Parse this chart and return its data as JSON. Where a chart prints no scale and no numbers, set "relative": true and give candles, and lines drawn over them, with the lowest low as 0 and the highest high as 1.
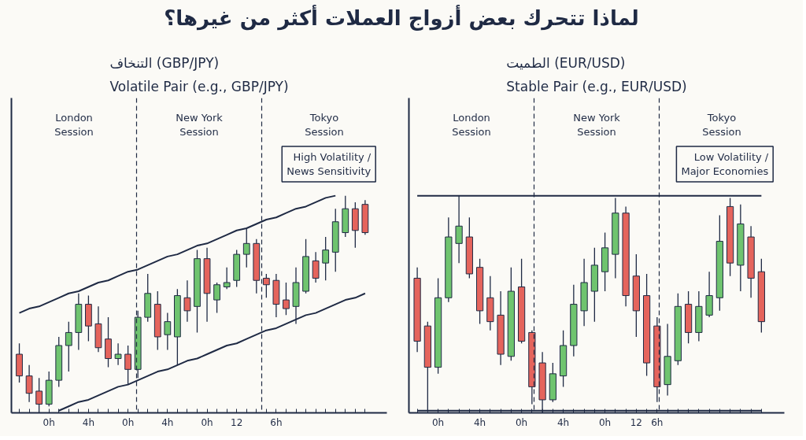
{
  "chart_data": [
    {
      "type": "candlestick",
      "title": "لماذا تتحرك بعض أزواج العملات أكثر من غيرها؟",
      "subtitle": "التنخاف (GBP/JPY)\nVolatile Pair (e.g., GBP/JPY)",
      "relative": true,
      "tick_labels": "x",
      "categories": [
        null,
        null,
        null,
        "0h",
        null,
        null,
        null,
        "4h",
        null,
        null,
        null,
        "0h",
        null,
        null,
        null,
        "4h",
        null,
        null,
        null,
        "0h",
        null,
        null,
        "12",
        null,
        null,
        null,
        "6h",
        null,
        null,
        null,
        null,
        null,
        null,
        null,
        null,
        null
      ],
      "ohlc": [
        [
          0.27,
          0.32,
          0.14,
          0.17
        ],
        [
          0.17,
          0.22,
          0.05,
          0.09
        ],
        [
          0.1,
          0.16,
          0.0,
          0.04
        ],
        [
          0.04,
          0.19,
          0.03,
          0.15
        ],
        [
          0.15,
          0.35,
          0.12,
          0.31
        ],
        [
          0.31,
          0.42,
          0.19,
          0.37
        ],
        [
          0.37,
          0.55,
          0.29,
          0.5
        ],
        [
          0.5,
          0.54,
          0.33,
          0.4
        ],
        [
          0.41,
          0.49,
          0.28,
          0.3
        ],
        [
          0.34,
          0.44,
          0.21,
          0.25
        ],
        [
          0.25,
          0.32,
          0.22,
          0.27
        ],
        [
          0.27,
          0.31,
          0.13,
          0.2
        ],
        [
          0.2,
          0.47,
          0.16,
          0.44
        ],
        [
          0.44,
          0.64,
          0.42,
          0.55
        ],
        [
          0.5,
          0.56,
          0.29,
          0.35
        ],
        [
          0.36,
          0.46,
          0.29,
          0.42
        ],
        [
          0.35,
          0.57,
          0.22,
          0.54
        ],
        [
          0.53,
          0.61,
          0.42,
          0.47
        ],
        [
          0.49,
          0.75,
          0.37,
          0.71
        ],
        [
          0.71,
          0.76,
          0.42,
          0.55
        ],
        [
          0.52,
          0.6,
          0.46,
          0.59
        ],
        [
          0.58,
          0.67,
          0.57,
          0.6
        ],
        [
          0.61,
          0.75,
          0.58,
          0.73
        ],
        [
          0.73,
          0.85,
          0.67,
          0.78
        ],
        [
          0.78,
          0.8,
          0.55,
          0.61
        ],
        [
          0.62,
          0.64,
          0.53,
          0.59
        ],
        [
          0.61,
          0.64,
          0.44,
          0.5
        ],
        [
          0.52,
          0.6,
          0.45,
          0.48
        ],
        [
          0.49,
          0.67,
          0.41,
          0.6
        ],
        [
          0.56,
          0.8,
          0.55,
          0.72
        ],
        [
          0.7,
          0.74,
          0.6,
          0.62
        ],
        [
          0.69,
          0.81,
          0.61,
          0.75
        ],
        [
          0.74,
          0.94,
          0.65,
          0.88
        ],
        [
          0.83,
          1.0,
          0.81,
          0.94
        ],
        [
          0.94,
          0.97,
          0.76,
          0.84
        ],
        [
          0.96,
          0.98,
          0.82,
          0.83
        ]
      ],
      "colors": [
        "#e5645c",
        "#e5645c",
        "#e5645c",
        "#6fc46f",
        "#6fc46f",
        "#6fc46f",
        "#6fc46f",
        "#e5645c",
        "#e5645c",
        "#e5645c",
        "#6fc46f",
        "#e5645c",
        "#6fc46f",
        "#6fc46f",
        "#e5645c",
        "#6fc46f",
        "#6fc46f",
        "#e5645c",
        "#6fc46f",
        "#e5645c",
        "#6fc46f",
        "#6fc46f",
        "#6fc46f",
        "#6fc46f",
        "#e5645c",
        "#e5645c",
        "#e5645c",
        "#e5645c",
        "#6fc46f",
        "#6fc46f",
        "#e5645c",
        "#6fc46f",
        "#6fc46f",
        "#6fc46f",
        "#e5645c",
        "#e5645c"
      ],
      "series": [
        {
          "type": "line",
          "color": "#1f2a44",
          "values": [
            0.46,
            0.48,
            0.49,
            0.51,
            0.53,
            0.55,
            0.56,
            0.58,
            0.6,
            0.61,
            0.63,
            0.65,
            0.66,
            0.68,
            0.7,
            0.72,
            0.73,
            0.75,
            0.77,
            0.78,
            0.8,
            0.82,
            0.84,
            0.85,
            0.87,
            0.89,
            0.9,
            0.92,
            0.94,
            0.95,
            0.97,
            0.99,
            1.0,
            null,
            null,
            null
          ]
        },
        {
          "type": "line",
          "color": "#1f2a44",
          "values": [
            null,
            null,
            null,
            null,
            0.01,
            0.03,
            0.05,
            0.06,
            0.08,
            0.1,
            0.12,
            0.13,
            0.15,
            0.17,
            0.19,
            0.2,
            0.22,
            0.24,
            0.25,
            0.27,
            0.29,
            0.31,
            0.32,
            0.34,
            0.36,
            0.38,
            0.39,
            0.41,
            0.43,
            0.45,
            0.46,
            0.48,
            0.5,
            0.52,
            0.53,
            0.55
          ]
        }
      ],
      "annotations": [
        "London Session",
        "New York Session",
        "Tokyo Session",
        "High Volatility /\nNews Sensitivity"
      ]
    },
    {
      "type": "candlestick",
      "subtitle": "الطميت (EUR/USD)\nStable Pair (e.g., EUR/USD)",
      "relative": true,
      "tick_labels": "x",
      "categories": [
        null,
        null,
        "0h",
        null,
        null,
        null,
        "4h",
        null,
        null,
        null,
        "0h",
        null,
        null,
        null,
        "4h",
        null,
        null,
        null,
        "0h",
        null,
        null,
        "12",
        null,
        "6h",
        null,
        null,
        null,
        null,
        null,
        null,
        null,
        null,
        null,
        null
      ],
      "ohlc": [
        [
          0.62,
          0.67,
          0.28,
          0.33
        ],
        [
          0.4,
          0.42,
          0.01,
          0.21
        ],
        [
          0.21,
          0.62,
          0.18,
          0.53
        ],
        [
          0.53,
          0.9,
          0.51,
          0.81
        ],
        [
          0.78,
          1.0,
          0.69,
          0.86
        ],
        [
          0.81,
          0.9,
          0.62,
          0.64
        ],
        [
          0.67,
          0.71,
          0.41,
          0.47
        ],
        [
          0.53,
          0.63,
          0.38,
          0.42
        ],
        [
          0.45,
          0.56,
          0.22,
          0.27
        ],
        [
          0.26,
          0.67,
          0.24,
          0.56
        ],
        [
          0.58,
          0.71,
          0.32,
          0.33
        ],
        [
          0.37,
          0.38,
          0.04,
          0.12
        ],
        [
          0.23,
          0.28,
          0.0,
          0.06
        ],
        [
          0.06,
          0.23,
          0.05,
          0.18
        ],
        [
          0.17,
          0.38,
          0.12,
          0.31
        ],
        [
          0.31,
          0.59,
          0.26,
          0.5
        ],
        [
          0.47,
          0.71,
          0.4,
          0.6
        ],
        [
          0.56,
          0.76,
          0.42,
          0.68
        ],
        [
          0.65,
          0.83,
          0.56,
          0.76
        ],
        [
          0.73,
          0.99,
          0.62,
          0.92
        ],
        [
          0.92,
          0.95,
          0.49,
          0.54
        ],
        [
          0.63,
          0.73,
          0.35,
          0.47
        ],
        [
          0.54,
          0.64,
          0.17,
          0.23
        ],
        [
          0.4,
          0.44,
          0.05,
          0.12
        ],
        [
          0.13,
          0.41,
          0.08,
          0.26
        ],
        [
          0.24,
          0.55,
          0.22,
          0.49
        ],
        [
          0.5,
          0.56,
          0.32,
          0.37
        ],
        [
          0.37,
          0.56,
          0.33,
          0.49
        ],
        [
          0.45,
          0.65,
          0.44,
          0.54
        ],
        [
          0.53,
          0.91,
          0.47,
          0.79
        ],
        [
          0.95,
          0.99,
          0.63,
          0.69
        ],
        [
          0.68,
          0.96,
          0.56,
          0.87
        ],
        [
          0.81,
          0.86,
          0.53,
          0.62
        ],
        [
          0.65,
          0.71,
          0.37,
          0.42
        ]
      ],
      "colors": [
        "#e5645c",
        "#e5645c",
        "#6fc46f",
        "#6fc46f",
        "#6fc46f",
        "#e5645c",
        "#e5645c",
        "#e5645c",
        "#e5645c",
        "#6fc46f",
        "#e5645c",
        "#e5645c",
        "#e5645c",
        "#6fc46f",
        "#6fc46f",
        "#6fc46f",
        "#6fc46f",
        "#6fc46f",
        "#6fc46f",
        "#6fc46f",
        "#e5645c",
        "#e5645c",
        "#e5645c",
        "#e5645c",
        "#6fc46f",
        "#6fc46f",
        "#e5645c",
        "#6fc46f",
        "#6fc46f",
        "#6fc46f",
        "#e5645c",
        "#6fc46f",
        "#e5645c",
        "#e5645c"
      ],
      "series": [
        {
          "type": "line",
          "color": "#1f2a44",
          "values": [
            1.0,
            1.0,
            1.0,
            1.0,
            1.0,
            1.0,
            1.0,
            1.0,
            1.0,
            1.0,
            1.0,
            1.0,
            1.0,
            1.0,
            1.0,
            1.0,
            1.0,
            1.0,
            1.0,
            1.0,
            1.0,
            1.0,
            1.0,
            1.0,
            1.0,
            1.0,
            1.0,
            1.0,
            1.0,
            1.0,
            1.0,
            1.0,
            1.0,
            1.0
          ]
        },
        {
          "type": "line",
          "color": "#1f2a44",
          "values": [
            0.01,
            0.01,
            0.01,
            0.01,
            0.01,
            0.01,
            0.01,
            0.01,
            0.01,
            0.01,
            0.01,
            0.01,
            0.01,
            0.01,
            0.01,
            0.01,
            0.01,
            0.01,
            0.01,
            0.01,
            0.01,
            0.01,
            0.01,
            0.01,
            0.01,
            0.01,
            0.01,
            0.01,
            0.01,
            0.01,
            0.01,
            0.01,
            0.01,
            0.01
          ]
        }
      ],
      "annotations": [
        "London Session",
        "New York Session",
        "Tokyo Session",
        "Low Volatility /\nMajor Economies"
      ]
    }
  ]
}
